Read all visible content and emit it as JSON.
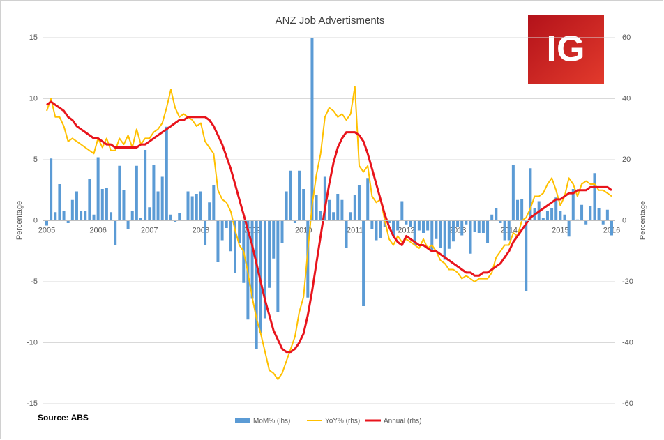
{
  "chart_data": {
    "type": "combo",
    "title": "ANZ Job Advertisments",
    "logo": "IG",
    "source": "Source: ABS",
    "y_label": "Percentage",
    "y2_label": "Percentage",
    "categories": [
      "2005",
      null,
      null,
      null,
      null,
      null,
      null,
      null,
      null,
      null,
      null,
      null,
      "2006",
      null,
      null,
      null,
      null,
      null,
      null,
      null,
      null,
      null,
      null,
      null,
      "2007",
      null,
      null,
      null,
      null,
      null,
      null,
      null,
      null,
      null,
      null,
      null,
      "2008",
      null,
      null,
      null,
      null,
      null,
      null,
      null,
      null,
      null,
      null,
      null,
      "2009",
      null,
      null,
      null,
      null,
      null,
      null,
      null,
      null,
      null,
      null,
      null,
      "2010",
      null,
      null,
      null,
      null,
      null,
      null,
      null,
      null,
      null,
      null,
      null,
      "2011",
      null,
      null,
      null,
      null,
      null,
      null,
      null,
      null,
      null,
      null,
      null,
      "2012",
      null,
      null,
      null,
      null,
      null,
      null,
      null,
      null,
      null,
      null,
      null,
      "2013",
      null,
      null,
      null,
      null,
      null,
      null,
      null,
      null,
      null,
      null,
      null,
      "2014",
      null,
      null,
      null,
      null,
      null,
      null,
      null,
      null,
      null,
      null,
      null,
      "2015",
      null,
      null,
      null,
      null,
      null,
      null,
      null,
      null,
      null,
      null,
      null,
      "2016"
    ],
    "ylim": [
      -15,
      15
    ],
    "yticks": [
      -15,
      -10,
      -5,
      0,
      5,
      10,
      15
    ],
    "y2lim": [
      -60,
      60
    ],
    "y2ticks": [
      -60,
      -40,
      -20,
      0,
      20,
      40,
      60
    ],
    "grid": true,
    "legend": "bottom",
    "series": [
      {
        "name": "MoM% (lhs)",
        "type": "bar",
        "axis": "y",
        "color": "#5b9bd5",
        "values": [
          -0.4,
          5.1,
          0.7,
          3.0,
          0.8,
          -0.2,
          1.7,
          2.4,
          0.8,
          0.8,
          3.4,
          0.5,
          5.2,
          2.6,
          2.7,
          0.7,
          -2.0,
          4.5,
          2.5,
          -0.7,
          0.8,
          4.5,
          0.2,
          5.8,
          1.1,
          4.6,
          2.4,
          3.6,
          7.7,
          0.5,
          -0.1,
          0.6,
          0.0,
          2.4,
          2.0,
          2.2,
          2.4,
          -2.0,
          1.5,
          2.9,
          -3.4,
          -1.6,
          -0.6,
          -2.5,
          -4.3,
          -1.8,
          -5.1,
          -8.1,
          -6.4,
          -10.5,
          -9.2,
          -8.0,
          -5.5,
          -3.1,
          -7.5,
          -1.8,
          2.4,
          4.1,
          -0.2,
          4.1,
          2.6,
          -6.3,
          15.0,
          2.1,
          0.8,
          3.6,
          1.7,
          0.7,
          2.2,
          1.7,
          -2.2,
          0.7,
          2.1,
          2.9,
          -7.0,
          3.5,
          -0.7,
          -1.6,
          -1.4,
          -0.5,
          -0.2,
          -1.3,
          -0.8,
          1.6,
          -0.3,
          -0.5,
          -2.0,
          -0.8,
          -1.0,
          -0.8,
          -2.5,
          -1.5,
          -2.2,
          -3.2,
          -2.3,
          -1.7,
          -0.5,
          -1.2,
          -0.3,
          -2.7,
          -0.9,
          -1.0,
          -1.0,
          -1.8,
          0.5,
          1.0,
          -0.2,
          -1.6,
          -1.6,
          4.6,
          1.7,
          1.8,
          -5.8,
          4.3,
          1.0,
          1.6,
          0.2,
          0.8,
          1.0,
          1.9,
          0.8,
          0.5,
          -1.3,
          2.6,
          0.1,
          1.3,
          -0.3,
          1.2,
          3.9,
          1.0,
          -0.3,
          0.9,
          -1.2
        ]
      },
      {
        "name": "YoY% (rhs)",
        "type": "line",
        "axis": "y2",
        "color": "#ffc000",
        "values": [
          36,
          40,
          34,
          34,
          31,
          26,
          27,
          26,
          25,
          24,
          23,
          22,
          27,
          24,
          27,
          23,
          23,
          27,
          25,
          28,
          24,
          30,
          25,
          27,
          27,
          29,
          30,
          32,
          37,
          43,
          37,
          34,
          35,
          34,
          33,
          31,
          32,
          26,
          24,
          22,
          10,
          7,
          6,
          3,
          -3,
          -8,
          -10,
          -17,
          -25,
          -32,
          -37,
          -43,
          -49,
          -50,
          -52,
          -50,
          -46,
          -42,
          -38,
          -30,
          -25,
          -10,
          5,
          15,
          22,
          34,
          37,
          36,
          34,
          35,
          33,
          35,
          44,
          18,
          16,
          18,
          8,
          6,
          7,
          0,
          -6,
          -8,
          -5,
          -7,
          -6,
          -7,
          -8,
          -9,
          -6,
          -9,
          -8,
          -10,
          -13,
          -14,
          -16,
          -16,
          -17,
          -19,
          -18,
          -19,
          -20,
          -19,
          -19,
          -19,
          -17,
          -12,
          -10,
          -8,
          -8,
          -4,
          -5,
          0,
          1,
          4,
          8,
          8,
          9,
          12,
          14,
          10,
          5,
          8,
          14,
          12,
          8,
          12,
          13,
          12,
          12,
          10,
          10,
          9,
          8
        ]
      },
      {
        "name": "Annual (rhs)",
        "type": "line",
        "axis": "y2",
        "color": "#e8141c",
        "values": [
          38,
          39,
          38,
          37,
          36,
          34,
          33,
          31,
          30,
          29,
          28,
          27,
          27,
          26,
          25,
          25,
          24,
          24,
          24,
          24,
          24,
          24,
          25,
          25,
          26,
          27,
          28,
          29,
          30,
          31,
          32,
          33,
          33,
          34,
          34,
          34,
          34,
          34,
          33,
          31,
          28,
          25,
          21,
          17,
          12,
          7,
          2,
          -3,
          -8,
          -14,
          -20,
          -26,
          -31,
          -36,
          -39,
          -42,
          -43,
          -43,
          -42,
          -40,
          -37,
          -31,
          -23,
          -14,
          -5,
          4,
          12,
          19,
          24,
          27,
          29,
          29,
          29,
          28,
          26,
          22,
          17,
          12,
          7,
          2,
          -2,
          -5,
          -7,
          -8,
          -5,
          -6,
          -7,
          -8,
          -8,
          -9,
          -10,
          -10,
          -11,
          -12,
          -13,
          -14,
          -15,
          -16,
          -17,
          -17,
          -18,
          -18,
          -17,
          -17,
          -16,
          -15,
          -14,
          -12,
          -10,
          -7,
          -5,
          -3,
          -1,
          1,
          2,
          3,
          4,
          5,
          6,
          7,
          7,
          8,
          9,
          9,
          10,
          10,
          10,
          11,
          11,
          11,
          11,
          11,
          10
        ]
      }
    ]
  }
}
